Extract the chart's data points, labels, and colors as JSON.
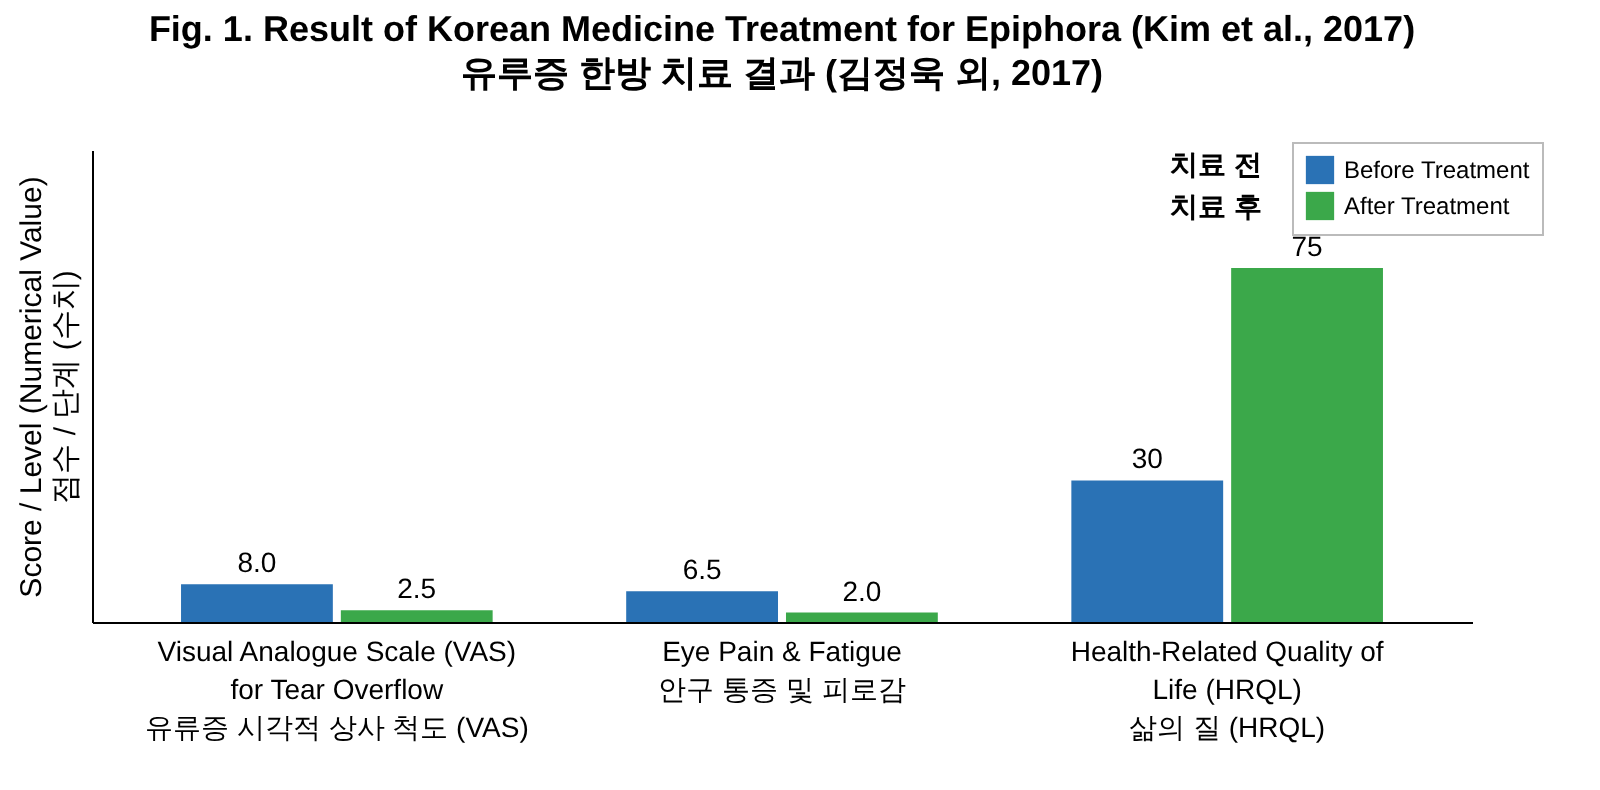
{
  "chart_data": {
    "type": "bar",
    "title": "Fig. 1. Result of Korean Medicine Treatment for Epiphora (Kim et al., 2017)\n유루증 한방 치료 결과 (김정욱 외, 2017)",
    "ylabel": "Score / Level (Numerical Value)\n점수 / 단계 (수치)",
    "categories": [
      "Visual Analogue Scale (VAS)\nfor Tear Overflow\n유류증 시각적 상사 척도 (VAS)",
      "Eye Pain & Fatigue\n\n안구 통증 및 피로감",
      "Health-Related Quality of\nLife (HRQL)\n삶의 질 (HRQL)"
    ],
    "series": [
      {
        "name": "Before Treatment",
        "color": "#2a72b5",
        "values": [
          8.0,
          6.5,
          30
        ],
        "value_labels": [
          "8.0",
          "6.5",
          "30"
        ]
      },
      {
        "name": "After Treatment",
        "color": "#3ba84a",
        "values": [
          2.5,
          2.0,
          75
        ],
        "value_labels": [
          "2.5",
          "2.0",
          "75"
        ]
      }
    ],
    "ylim": [
      0,
      100
    ],
    "tick_labels": "x",
    "grid": false,
    "legend": "top right",
    "annotations": [
      "치료 전",
      "치료 후"
    ]
  }
}
